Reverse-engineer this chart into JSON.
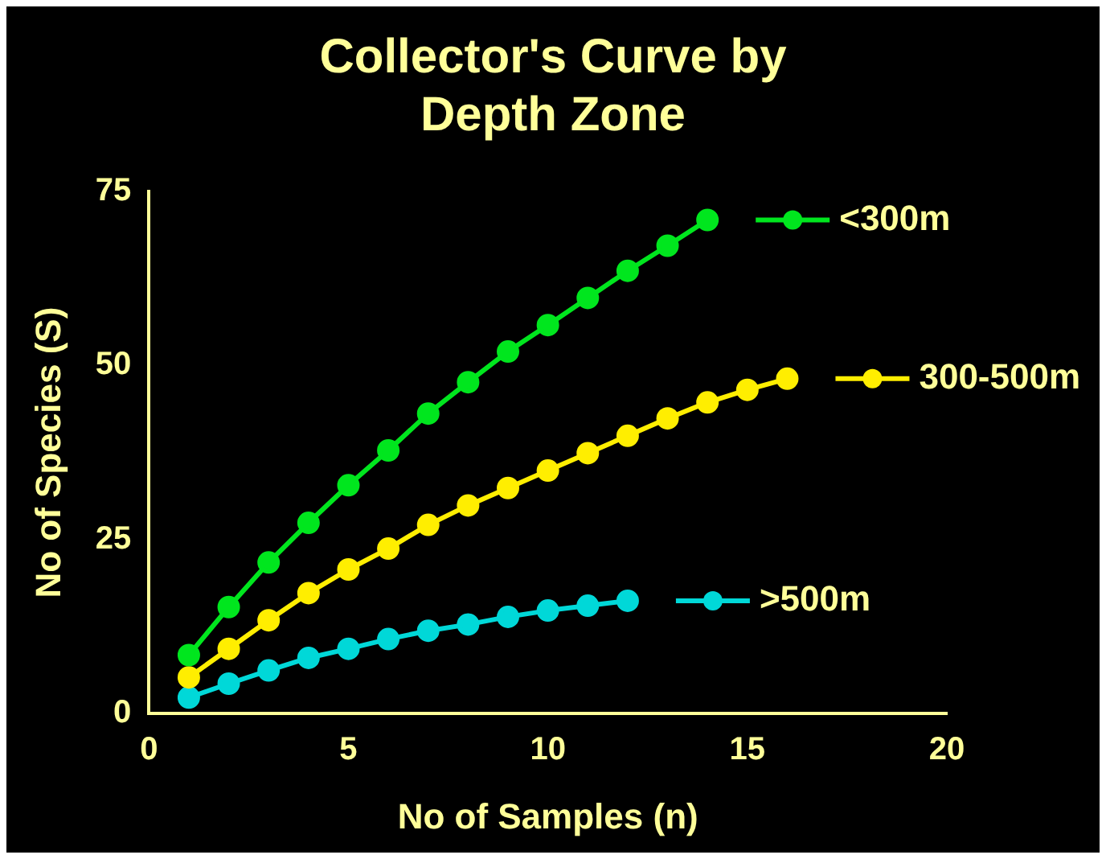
{
  "chart_data": {
    "type": "line",
    "title": "Collector's Curve by Depth Zone",
    "xlabel": "No of Samples (n)",
    "ylabel": "No of Species (S)",
    "xlim": [
      0,
      20
    ],
    "xticks": [
      0,
      5,
      10,
      15,
      20
    ],
    "ylim": [
      0,
      75
    ],
    "yticks": [
      0,
      25,
      50,
      75
    ],
    "grid": false,
    "legend": "right",
    "marker": "circle",
    "line_style": "solid",
    "series": [
      {
        "name": "<300m",
        "color": "#00e61e",
        "x": [
          1,
          2,
          3,
          4,
          5,
          6,
          7,
          8,
          9,
          10,
          11,
          12,
          13,
          14
        ],
        "values": [
          8.4,
          15.3,
          21.7,
          27.4,
          32.8,
          37.8,
          43.1,
          47.6,
          52,
          55.8,
          59.7,
          63.6,
          67.2,
          70.9
        ]
      },
      {
        "name": "300-500m",
        "color": "#ffee00",
        "x": [
          1,
          2,
          3,
          4,
          5,
          6,
          7,
          8,
          9,
          10,
          11,
          12,
          13,
          14,
          15,
          16
        ],
        "values": [
          5.2,
          9.3,
          13.4,
          17.3,
          20.7,
          23.7,
          27.1,
          29.9,
          32.4,
          34.9,
          37.4,
          39.9,
          42.4,
          44.7,
          46.5,
          48.1
        ]
      },
      {
        "name": ">500m",
        "color": "#00d8d8",
        "x": [
          1,
          2,
          3,
          4,
          5,
          6,
          7,
          8,
          9,
          10,
          11,
          12
        ],
        "values": [
          2.3,
          4.3,
          6.2,
          8,
          9.3,
          10.7,
          11.9,
          12.8,
          13.9,
          14.8,
          15.5,
          16.2
        ]
      }
    ]
  }
}
